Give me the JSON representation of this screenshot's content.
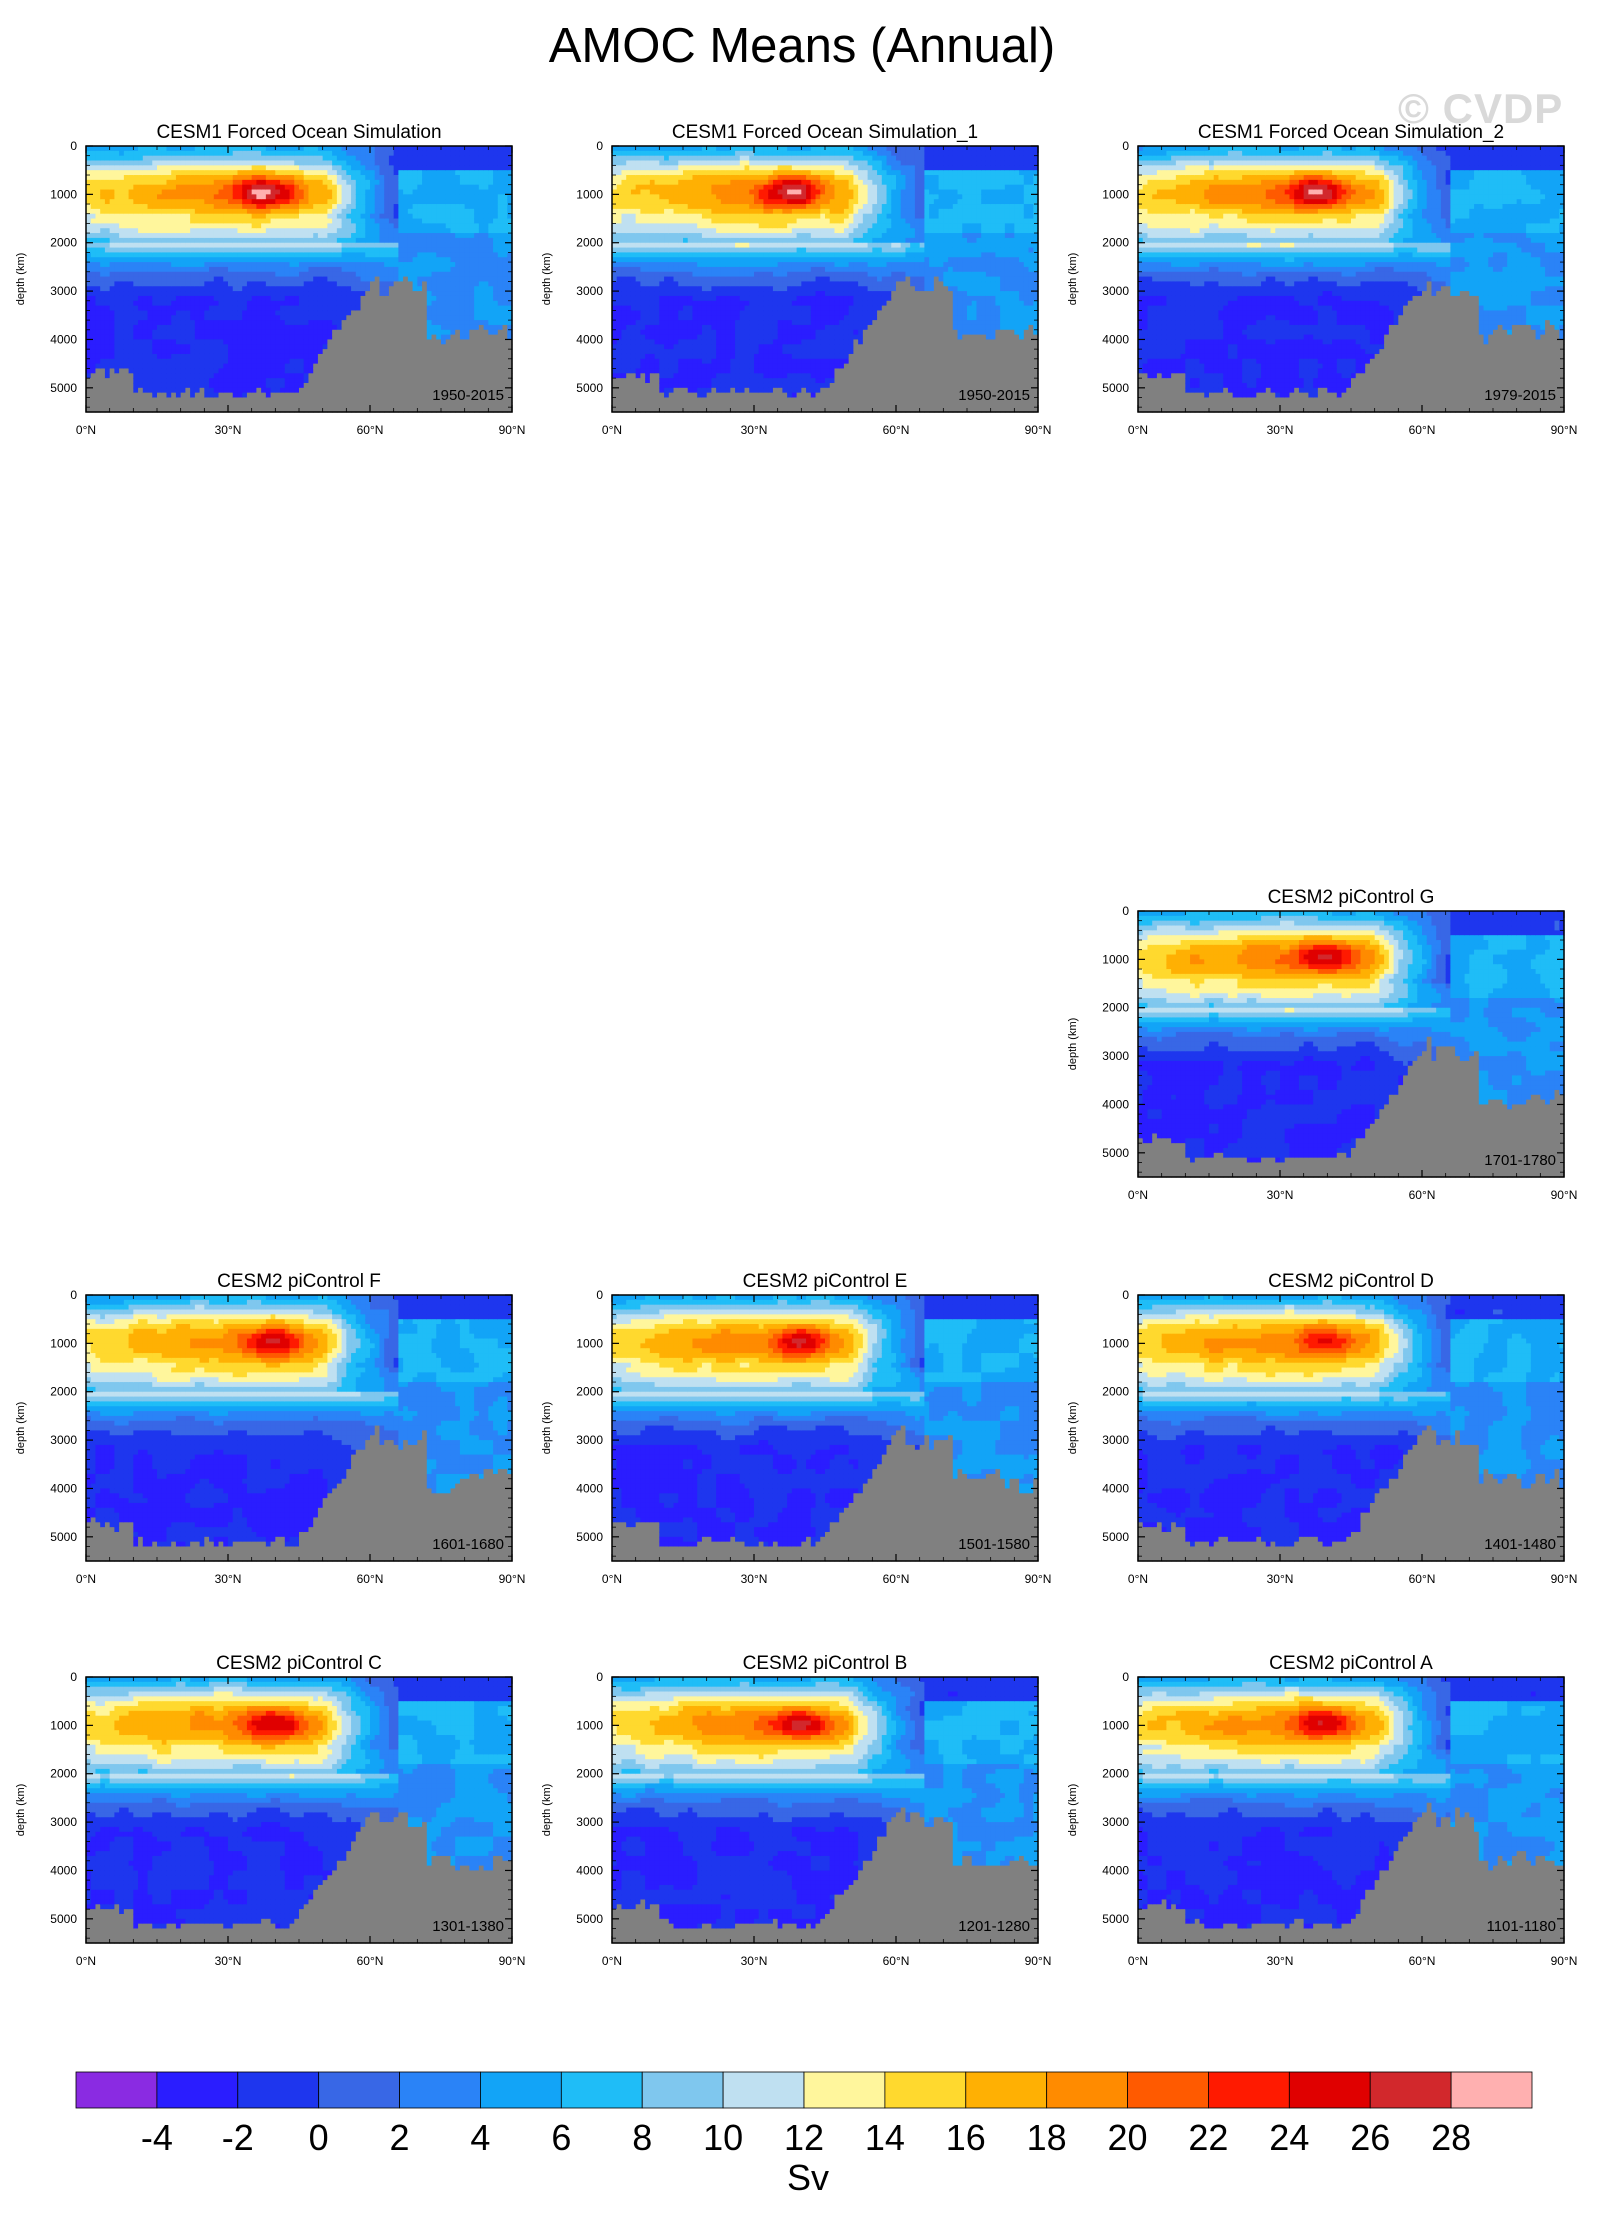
{
  "title": "AMOC Means (Annual)",
  "watermark": "© CVDP",
  "chart_data": [
    {
      "type": "heatmap",
      "title": "CESM1 Forced Ocean Simulation",
      "period": "1950-2015",
      "ylabel": "depth (km)",
      "xlabel": "",
      "x_ticks": [
        "0°N",
        "30°N",
        "60°N",
        "90°N"
      ],
      "y_ticks": [
        "0",
        "1000",
        "2000",
        "3000",
        "4000",
        "5000"
      ],
      "xlim": [
        0,
        90
      ],
      "ylim": [
        5500,
        0
      ],
      "max_value_sv": 28,
      "max_lat": 38,
      "max_depth": 950,
      "variant": 1
    },
    {
      "type": "heatmap",
      "title": "CESM1 Forced Ocean Simulation_1",
      "period": "1950-2015",
      "ylabel": "depth (km)",
      "xlabel": "",
      "x_ticks": [
        "0°N",
        "30°N",
        "60°N",
        "90°N"
      ],
      "y_ticks": [
        "0",
        "1000",
        "2000",
        "3000",
        "4000",
        "5000"
      ],
      "xlim": [
        0,
        90
      ],
      "ylim": [
        5500,
        0
      ],
      "max_value_sv": 28,
      "max_lat": 38,
      "max_depth": 950,
      "variant": 2
    },
    {
      "type": "heatmap",
      "title": "CESM1 Forced Ocean Simulation_2",
      "period": "1979-2015",
      "ylabel": "depth (km)",
      "xlabel": "",
      "x_ticks": [
        "0°N",
        "30°N",
        "60°N",
        "90°N"
      ],
      "y_ticks": [
        "0",
        "1000",
        "2000",
        "3000",
        "4000",
        "5000"
      ],
      "xlim": [
        0,
        90
      ],
      "ylim": [
        5500,
        0
      ],
      "max_value_sv": 28,
      "max_lat": 38,
      "max_depth": 950,
      "variant": 3
    },
    {
      "type": "heatmap",
      "title": "CESM2 piControl G",
      "period": "1701-1780",
      "ylabel": "depth (km)",
      "xlabel": "",
      "x_ticks": [
        "0°N",
        "30°N",
        "60°N",
        "90°N"
      ],
      "y_ticks": [
        "0",
        "1000",
        "2000",
        "3000",
        "4000",
        "5000"
      ],
      "xlim": [
        0,
        90
      ],
      "ylim": [
        5500,
        0
      ],
      "max_value_sv": 26,
      "max_lat": 40,
      "max_depth": 950,
      "variant": 4
    },
    {
      "type": "heatmap",
      "title": "CESM2 piControl F",
      "period": "1601-1680",
      "ylabel": "depth (km)",
      "xlabel": "",
      "x_ticks": [
        "0°N",
        "30°N",
        "60°N",
        "90°N"
      ],
      "y_ticks": [
        "0",
        "1000",
        "2000",
        "3000",
        "4000",
        "5000"
      ],
      "xlim": [
        0,
        90
      ],
      "ylim": [
        5500,
        0
      ],
      "max_value_sv": 26,
      "max_lat": 40,
      "max_depth": 950,
      "variant": 5
    },
    {
      "type": "heatmap",
      "title": "CESM2 piControl E",
      "period": "1501-1580",
      "ylabel": "depth (km)",
      "xlabel": "",
      "x_ticks": [
        "0°N",
        "30°N",
        "60°N",
        "90°N"
      ],
      "y_ticks": [
        "0",
        "1000",
        "2000",
        "3000",
        "4000",
        "5000"
      ],
      "xlim": [
        0,
        90
      ],
      "ylim": [
        5500,
        0
      ],
      "max_value_sv": 26,
      "max_lat": 40,
      "max_depth": 950,
      "variant": 6
    },
    {
      "type": "heatmap",
      "title": "CESM2 piControl D",
      "period": "1401-1480",
      "ylabel": "depth (km)",
      "xlabel": "",
      "x_ticks": [
        "0°N",
        "30°N",
        "60°N",
        "90°N"
      ],
      "y_ticks": [
        "0",
        "1000",
        "2000",
        "3000",
        "4000",
        "5000"
      ],
      "xlim": [
        0,
        90
      ],
      "ylim": [
        5500,
        0
      ],
      "max_value_sv": 24,
      "max_lat": 40,
      "max_depth": 950,
      "variant": 7
    },
    {
      "type": "heatmap",
      "title": "CESM2 piControl C",
      "period": "1301-1380",
      "ylabel": "depth (km)",
      "xlabel": "",
      "x_ticks": [
        "0°N",
        "30°N",
        "60°N",
        "90°N"
      ],
      "y_ticks": [
        "0",
        "1000",
        "2000",
        "3000",
        "4000",
        "5000"
      ],
      "xlim": [
        0,
        90
      ],
      "ylim": [
        5500,
        0
      ],
      "max_value_sv": 26,
      "max_lat": 40,
      "max_depth": 950,
      "variant": 8
    },
    {
      "type": "heatmap",
      "title": "CESM2 piControl B",
      "period": "1201-1280",
      "ylabel": "depth (km)",
      "xlabel": "",
      "x_ticks": [
        "0°N",
        "30°N",
        "60°N",
        "90°N"
      ],
      "y_ticks": [
        "0",
        "1000",
        "2000",
        "3000",
        "4000",
        "5000"
      ],
      "xlim": [
        0,
        90
      ],
      "ylim": [
        5500,
        0
      ],
      "max_value_sv": 26,
      "max_lat": 40,
      "max_depth": 950,
      "variant": 9
    },
    {
      "type": "heatmap",
      "title": "CESM2 piControl A",
      "period": "1101-1180",
      "ylabel": "depth (km)",
      "xlabel": "",
      "x_ticks": [
        "0°N",
        "30°N",
        "60°N",
        "90°N"
      ],
      "y_ticks": [
        "0",
        "1000",
        "2000",
        "3000",
        "4000",
        "5000"
      ],
      "xlim": [
        0,
        90
      ],
      "ylim": [
        5500,
        0
      ],
      "max_value_sv": 26,
      "max_lat": 40,
      "max_depth": 950,
      "variant": 10
    }
  ],
  "colorbar": {
    "labels": [
      "-4",
      "-2",
      "0",
      "2",
      "4",
      "6",
      "8",
      "10",
      "12",
      "14",
      "16",
      "18",
      "20",
      "22",
      "24",
      "26",
      "28"
    ],
    "levels": [
      -4,
      -2,
      0,
      2,
      4,
      6,
      8,
      10,
      12,
      14,
      16,
      18,
      20,
      22,
      24,
      26,
      28
    ],
    "colors": [
      "#8a2be2",
      "#2a1dff",
      "#1e36ee",
      "#3867e6",
      "#2a83f7",
      "#12a4f7",
      "#1fbdf7",
      "#7fc7ee",
      "#bfe0f1",
      "#fff69c",
      "#ffd92e",
      "#ffb003",
      "#ff8b00",
      "#ff5a00",
      "#ff1a00",
      "#e00000",
      "#d2282c",
      "#ffb0b0"
    ],
    "units": "Sv"
  },
  "land_color": "#808080"
}
